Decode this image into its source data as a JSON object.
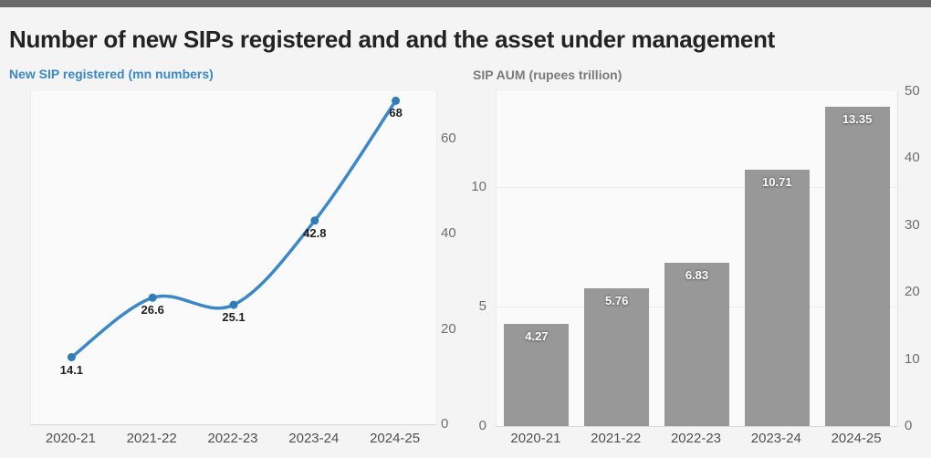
{
  "header": {
    "title": "Number of new SIPs registered and and the asset under management"
  },
  "colors": {
    "topbar": "#696969",
    "page_background": "#f4f4f4",
    "plot_background": "#fafafa",
    "line": "#3a87c9",
    "point": "#2e7cb8",
    "bar": "#989898",
    "line_subtitle": "#3a87c9",
    "bar_subtitle": "#7a7a7a"
  },
  "chart_data": [
    {
      "type": "line",
      "title": "New SIP registered (mn numbers)",
      "categories": [
        "2020-21",
        "2021-22",
        "2022-23",
        "2023-24",
        "2024-25"
      ],
      "values": [
        14.1,
        26.6,
        25.1,
        42.8,
        68
      ],
      "value_labels": [
        "14.1",
        "26.6",
        "25.1",
        "42.8",
        "68"
      ],
      "yticks": [
        0,
        20,
        40,
        60
      ],
      "ylim": [
        0,
        70
      ],
      "axis_side": "right",
      "grid": false,
      "color": "#3a87c9",
      "point_color": "#2e7cb8"
    },
    {
      "type": "bar",
      "title": "SIP AUM (rupees trillion)",
      "categories": [
        "2020-21",
        "2021-22",
        "2022-23",
        "2023-24",
        "2024-25"
      ],
      "values": [
        4.27,
        5.76,
        6.83,
        10.71,
        13.35
      ],
      "value_labels": [
        "4.27",
        "5.76",
        "6.83",
        "10.71",
        "13.35"
      ],
      "left_axis": {
        "ticks": [
          0,
          5,
          10
        ],
        "ylim": [
          0,
          14
        ]
      },
      "right_axis": {
        "ticks": [
          0,
          10,
          20,
          30,
          40,
          50
        ],
        "ylim": [
          0,
          50
        ]
      },
      "grid": true,
      "gridlines_at": [
        5,
        10
      ],
      "color": "#989898"
    }
  ]
}
